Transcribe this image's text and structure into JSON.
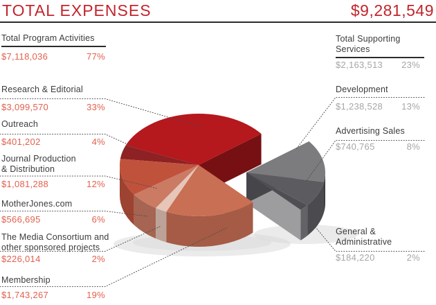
{
  "header": {
    "title": "TOTAL EXPENSES",
    "amount": "$9,281,549"
  },
  "colors": {
    "title_red": "#c1252c",
    "label_ink": "#3b3b3b",
    "value_red": "#e2614e",
    "value_gray": "#a6a6a9",
    "rule_dark": "#2b2b2b",
    "leader_gray": "#4d4d4d",
    "shadow_gray": "#d7d7d7"
  },
  "left_column": {
    "header": {
      "label": "Total Program Activities",
      "amount": "$7,118,036",
      "pct": "77%"
    },
    "items": [
      {
        "label": "Research & Editorial",
        "amount": "$3,099,570",
        "pct": "33%"
      },
      {
        "label": "Outreach",
        "amount": "$401,202",
        "pct": "4%"
      },
      {
        "label": "Journal Production\n& Distribution",
        "amount": "$1,081,288",
        "pct": "12%"
      },
      {
        "label": "MotherJones.com",
        "amount": "$566,695",
        "pct": "6%"
      },
      {
        "label": "The Media Consortium and\nother sponsored projects",
        "amount": "$226,014",
        "pct": "2%"
      },
      {
        "label": "Membership",
        "amount": "$1,743,267",
        "pct": "19%"
      }
    ]
  },
  "right_column": {
    "header": {
      "label": "Total Supporting\nServices",
      "amount": "$2,163,513",
      "pct": "23%"
    },
    "items": [
      {
        "label": "Development",
        "amount": "$1,238,528",
        "pct": "13%"
      },
      {
        "label": "Advertising Sales",
        "amount": "$740,765",
        "pct": "8%"
      },
      {
        "label": "General &\nAdministrative",
        "amount": "$184,220",
        "pct": "2%"
      }
    ]
  },
  "chart_data": {
    "type": "pie",
    "title": "TOTAL EXPENSES",
    "total_label": "$9,281,549",
    "total_value": 9281549,
    "style": "3d-exploded",
    "groups": [
      {
        "name": "Total Program Activities",
        "amount": "$7,118,036",
        "value": 7118036,
        "pct": "77%",
        "exploded": false,
        "slices": [
          {
            "name": "Research & Editorial",
            "value": 3099570,
            "pct": "33%",
            "color": "#b5181d"
          },
          {
            "name": "Outreach",
            "value": 401202,
            "pct": "4%",
            "color": "#8e2124"
          },
          {
            "name": "Journal Production & Distribution",
            "value": 1081288,
            "pct": "12%",
            "color": "#c0523c"
          },
          {
            "name": "MotherJones.com",
            "value": 566695,
            "pct": "6%",
            "color": "#cb7a64"
          },
          {
            "name": "The Media Consortium and other sponsored projects",
            "value": 226014,
            "pct": "2%",
            "color": "#e6c6b8"
          },
          {
            "name": "Membership",
            "value": 1743267,
            "pct": "19%",
            "color": "#c96f54"
          }
        ]
      },
      {
        "name": "Total Supporting Services",
        "amount": "$2,163,513",
        "value": 2163513,
        "pct": "23%",
        "exploded": true,
        "slices": [
          {
            "name": "General & Administrative",
            "value": 184220,
            "pct": "2%",
            "color": "#4f4f53"
          },
          {
            "name": "Advertising Sales",
            "value": 740765,
            "pct": "8%",
            "color": "#5c5c60"
          },
          {
            "name": "Development",
            "value": 1238528,
            "pct": "13%",
            "color": "#7c7c7f"
          }
        ]
      }
    ]
  }
}
